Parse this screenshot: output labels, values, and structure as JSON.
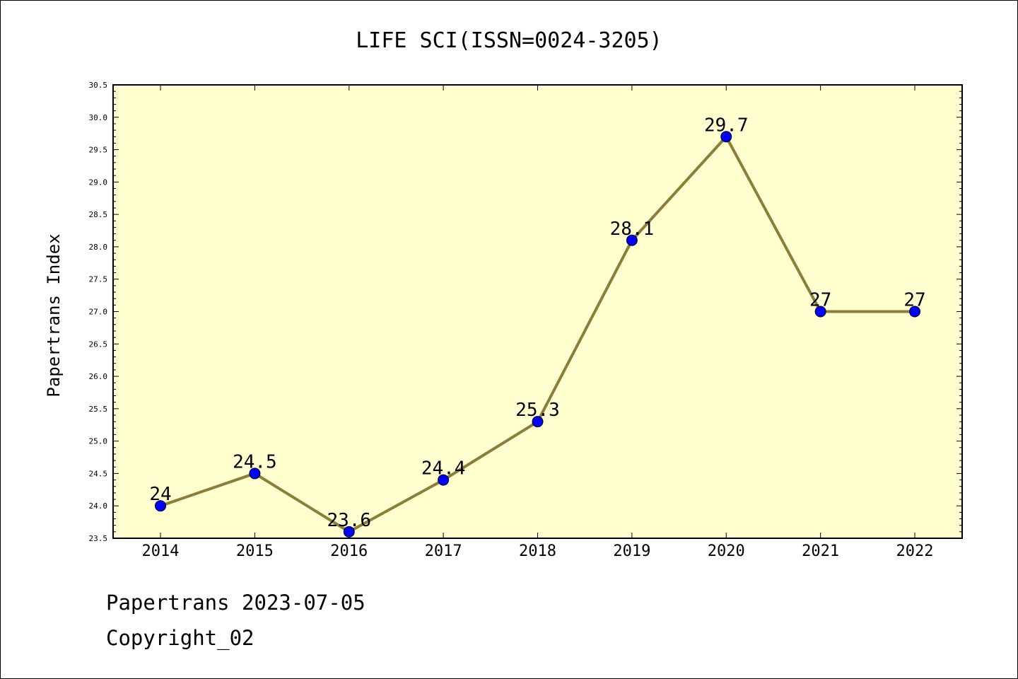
{
  "chart_data": {
    "type": "line",
    "title": "LIFE SCI(ISSN=0024-3205)",
    "xlabel": "",
    "ylabel": "Papertrans Index",
    "categories": [
      "2014",
      "2015",
      "2016",
      "2017",
      "2018",
      "2019",
      "2020",
      "2021",
      "2022"
    ],
    "series": [
      {
        "values": [
          24,
          24.5,
          23.6,
          24.4,
          25.3,
          28.1,
          29.7,
          27,
          27
        ]
      }
    ],
    "data_labels": [
      "24",
      "24.5",
      "23.6",
      "24.4",
      "25.3",
      "28.1",
      "29.7",
      "27",
      "27"
    ],
    "ylim": [
      23.5,
      30.5
    ],
    "y_ticks": [
      "23.5",
      "24.0",
      "24.5",
      "25.0",
      "25.5",
      "26.0",
      "26.5",
      "27.0",
      "27.5",
      "28.0",
      "28.5",
      "29.0",
      "29.5",
      "30.0",
      "30.5"
    ],
    "grid": false,
    "legend": "none",
    "colors": {
      "plot_background": "#ffffd0",
      "line": "#8b7d3a",
      "marker": "#0000ff"
    }
  },
  "footer": {
    "line1": "Papertrans 2023-07-05",
    "line2": "Copyright_02"
  }
}
